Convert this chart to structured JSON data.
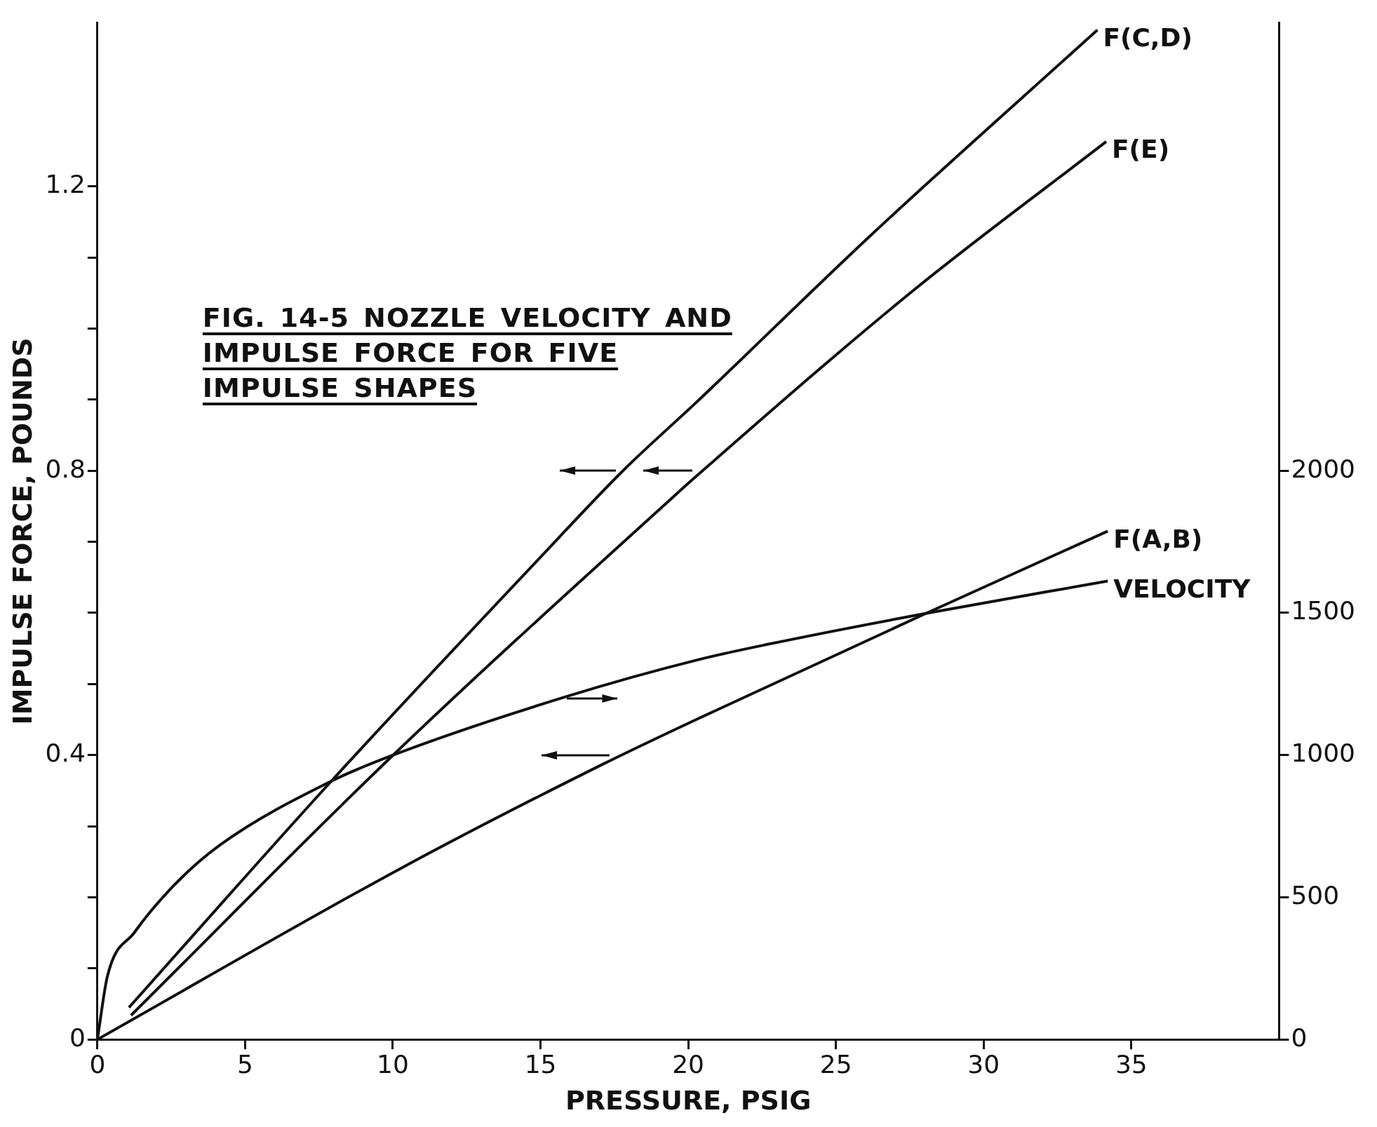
{
  "chart_data": {
    "type": "line",
    "title": "FIG. 14-5 NOZZLE VELOCITY AND IMPULSE FORCE FOR FIVE IMPULSE SHAPES",
    "xlabel": "PRESSURE, PSIG",
    "ylabel": "IMPULSE FORCE, POUNDS",
    "xlim": [
      0,
      40
    ],
    "xticks": [
      0,
      5,
      10,
      15,
      20,
      25,
      30,
      35
    ],
    "ylim": [
      0,
      1.43
    ],
    "yticks": [
      0,
      {
        "value": 0.1,
        "label": null
      },
      {
        "value": 0.2,
        "label": null
      },
      {
        "value": 0.3,
        "label": null
      },
      0.4,
      {
        "value": 0.5,
        "label": null
      },
      {
        "value": 0.6,
        "label": null
      },
      {
        "value": 0.7,
        "label": null
      },
      0.8,
      {
        "value": 0.9,
        "label": null
      },
      {
        "value": 1.0,
        "label": null
      },
      {
        "value": 1.1,
        "label": null
      },
      1.2
    ],
    "y2lim": [
      0,
      3575
    ],
    "y2ticks": [
      0,
      500,
      1000,
      1500,
      2000
    ],
    "grid": false,
    "legend": false,
    "marker": "none",
    "line_style": "solid",
    "series": [
      {
        "name": "F(C,D)",
        "color": "#111111",
        "x": [
          1.07,
          7.91,
          15.17,
          17.79,
          20.32,
          26.2,
          33.85
        ],
        "values": [
          0.045,
          0.363,
          0.686,
          0.8,
          0.898,
          1.132,
          1.42
        ]
      },
      {
        "name": "F(E)",
        "color": "#111111",
        "x": [
          1.14,
          10.01,
          19.54,
          20.32,
          27.66,
          34.15
        ],
        "values": [
          0.034,
          0.4,
          0.765,
          0.794,
          1.055,
          1.263
        ]
      },
      {
        "name": "F(A,B)",
        "color": "#111111",
        "x": [
          0,
          10.24,
          17.1,
          20.32,
          28.03,
          34.2
        ],
        "values": [
          0,
          0.24,
          0.387,
          0.451,
          0.599,
          0.715
        ]
      },
      {
        "name": "VELOCITY",
        "color": "#111111",
        "axis": "y2",
        "x": [
          0,
          0.34,
          1.25,
          2.62,
          4.15,
          7.91,
          10.01,
          15.88,
          20.32,
          22.71,
          28.03,
          34.2
        ],
        "values": [
          0,
          223,
          376,
          545,
          684,
          908,
          1000,
          1206,
          1335,
          1390,
          1498,
          1612
        ]
      }
    ]
  }
}
